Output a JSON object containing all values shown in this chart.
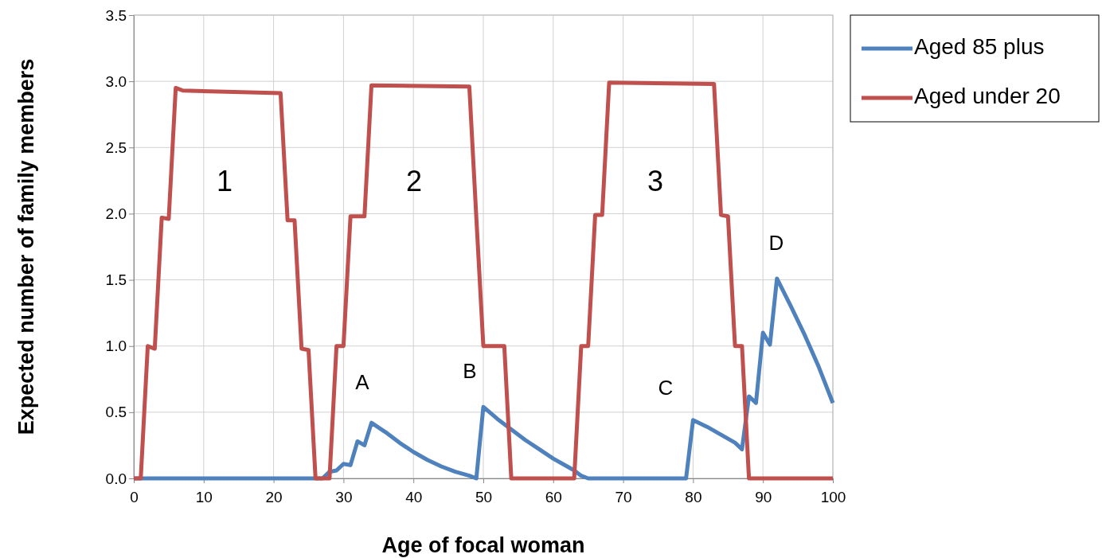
{
  "chart_data": {
    "type": "line",
    "xlabel": "Age of focal woman",
    "ylabel": "Expected number of family members",
    "xlim": [
      0,
      100
    ],
    "xticks": [
      0,
      10,
      20,
      30,
      40,
      50,
      60,
      70,
      80,
      90,
      100
    ],
    "ylim": [
      0,
      3.5
    ],
    "yticks": [
      {
        "value": 0,
        "label": "0.0"
      },
      {
        "value": 0.5,
        "label": "0.5"
      },
      {
        "value": 1,
        "label": "1.0"
      },
      {
        "value": 1.5,
        "label": "1.5"
      },
      {
        "value": 2,
        "label": "2.0"
      },
      {
        "value": 2.5,
        "label": "2.5"
      },
      {
        "value": 3,
        "label": "3.0"
      },
      {
        "value": 3.5,
        "label": "3.5"
      }
    ],
    "grid": true,
    "legend": "top right",
    "marker": "none",
    "line_style": "solid",
    "series": [
      {
        "name": "Aged 85 plus",
        "color": "#4f81bd",
        "x": [
          0,
          27,
          28,
          29,
          30,
          31,
          32,
          33,
          34,
          36,
          38,
          40,
          42,
          44,
          46,
          48,
          49,
          50,
          52,
          54,
          56,
          58,
          60,
          62,
          63,
          64,
          65,
          79,
          80,
          82,
          84,
          86,
          87,
          88,
          89,
          90,
          91,
          92,
          94,
          96,
          98,
          100
        ],
        "values": [
          0,
          0,
          0.05,
          0.06,
          0.11,
          0.1,
          0.28,
          0.25,
          0.42,
          0.35,
          0.27,
          0.2,
          0.14,
          0.09,
          0.05,
          0.02,
          0,
          0.54,
          0.45,
          0.37,
          0.29,
          0.22,
          0.15,
          0.09,
          0.06,
          0.02,
          0,
          0,
          0.44,
          0.39,
          0.33,
          0.27,
          0.22,
          0.62,
          0.57,
          1.1,
          1.01,
          1.51,
          1.3,
          1.08,
          0.84,
          0.57
        ]
      },
      {
        "name": "Aged under 20",
        "color": "#c0504d",
        "x": [
          0,
          1,
          2,
          3,
          4,
          5,
          6,
          7,
          21,
          22,
          23,
          24,
          25,
          26,
          27,
          28,
          29,
          30,
          31,
          33,
          34,
          48,
          49,
          50,
          53,
          54,
          63,
          64,
          65,
          66,
          67,
          68,
          83,
          84,
          85,
          86,
          87,
          88,
          100
        ],
        "values": [
          0,
          0,
          1.0,
          0.98,
          1.97,
          1.96,
          2.95,
          2.93,
          2.91,
          1.95,
          1.95,
          0.98,
          0.97,
          0,
          0,
          0,
          1.0,
          1.0,
          1.98,
          1.98,
          2.97,
          2.96,
          1.97,
          1.0,
          1.0,
          0,
          0,
          1.0,
          1.0,
          1.99,
          1.99,
          2.99,
          2.98,
          1.99,
          1.98,
          1.0,
          1.0,
          0,
          0
        ]
      }
    ],
    "annotations": [
      "1",
      "2",
      "3",
      "A",
      "B",
      "C",
      "D"
    ]
  }
}
